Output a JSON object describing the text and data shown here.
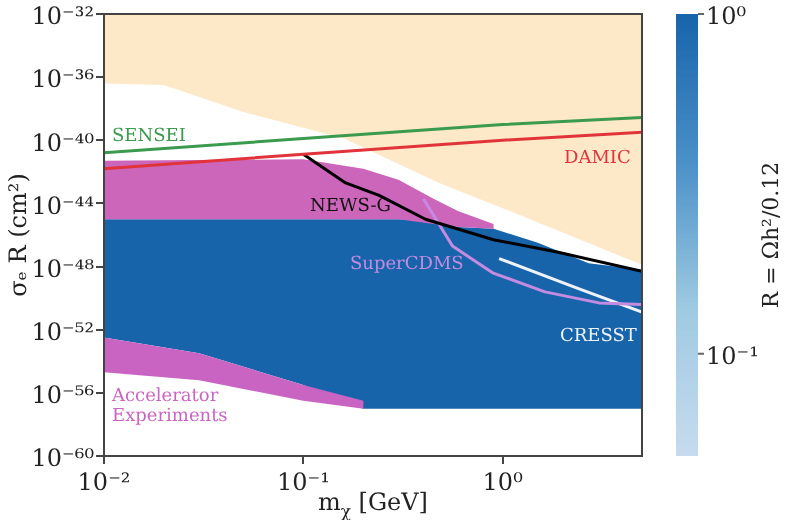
{
  "chart_data": {
    "type": "area",
    "xlabel": "m$_{χ}$ [GeV]",
    "ylabel": "σₑ R (cm²)",
    "clabel": "R = Ωh²/0.12",
    "log": "xy",
    "grid": false,
    "xlim": [
      0.01,
      5
    ],
    "ylim": [
      1e-60,
      1e-32
    ],
    "xticks": [
      {
        "value": 0.01,
        "label": "10⁻²"
      },
      {
        "value": 0.1,
        "label": "10⁻¹"
      },
      {
        "value": 1,
        "label": "10⁰"
      }
    ],
    "yticks": [
      {
        "value": 1e-60,
        "label": "10⁻⁶⁰"
      },
      {
        "value": 1e-56,
        "label": "10⁻⁵⁶"
      },
      {
        "value": 1e-52,
        "label": "10⁻⁵²"
      },
      {
        "value": 1e-48,
        "label": "10⁻⁴⁸"
      },
      {
        "value": 1e-44,
        "label": "10⁻⁴⁴"
      },
      {
        "value": 1e-40,
        "label": "10⁻⁴⁰"
      },
      {
        "value": 1e-36,
        "label": "10⁻³⁶"
      },
      {
        "value": 1e-32,
        "label": "10⁻³²"
      }
    ],
    "clim": [
      0.05,
      1
    ],
    "cticks": [
      {
        "value": 0.1,
        "label": "10⁻¹"
      },
      {
        "value": 1,
        "label": "10⁰"
      }
    ],
    "series": [
      {
        "type": "area",
        "color": "#fde8c8",
        "x": [
          0.01,
          5,
          5,
          1,
          0.48,
          0.3,
          0.16,
          0.05,
          0.02,
          0.01
        ],
        "values": [
          1e-32,
          1e-32,
          1.3e-48,
          5e-45,
          2e-43,
          3.2e-42,
          1.3e-40,
          6.3e-39,
          3.2e-37,
          4e-37
        ]
      },
      {
        "type": "area",
        "color": "#1764ab",
        "x": [
          0.01,
          0.4,
          0.6,
          0.9,
          1.5,
          2.7,
          5,
          5,
          0.2,
          0.1,
          0.03,
          0.01
        ],
        "values": [
          1e-45,
          1e-45,
          3.2e-46,
          2.5e-46,
          3.2e-47,
          1.6e-48,
          6.3e-49,
          1e-57,
          1e-57,
          3.2e-56,
          3.2e-54,
          3.2e-53
        ]
      },
      {
        "type": "area",
        "color": "#cc66bb",
        "x": [
          0.01,
          0.1,
          0.2,
          0.3,
          0.45,
          0.6,
          0.9,
          0.9,
          0.6,
          0.45,
          0.3,
          0.01
        ],
        "values": [
          5e-42,
          6.3e-42,
          1.6e-42,
          3.2e-43,
          2e-44,
          3.2e-45,
          5e-46,
          2.5e-46,
          3.2e-46,
          5e-46,
          1e-45,
          1e-45
        ]
      },
      {
        "type": "area",
        "name": "Accelerator Experiments",
        "color": "#c964c2",
        "x": [
          0.01,
          0.03,
          0.1,
          0.2,
          0.2,
          0.1,
          0.03,
          0.01
        ],
        "values": [
          3.2e-53,
          3.2e-54,
          3.2e-56,
          3.2e-57,
          1e-57,
          3.2e-57,
          6.3e-56,
          2e-55
        ]
      },
      {
        "type": "line",
        "name": "SENSEI",
        "color": "#3a9a4e",
        "x": [
          0.01,
          0.1,
          1,
          5
        ],
        "values": [
          1.6e-41,
          1.3e-40,
          1e-39,
          2.8e-39
        ]
      },
      {
        "type": "line",
        "name": "DAMIC",
        "color": "#e0343a",
        "x": [
          0.01,
          0.1,
          1,
          5
        ],
        "values": [
          1.6e-42,
          1.3e-41,
          1e-40,
          3.2e-40
        ]
      },
      {
        "type": "line",
        "name": "NEWS-G",
        "color": "#000000",
        "x": [
          0.1,
          0.163,
          0.24,
          0.41,
          0.9,
          1.9,
          5
        ],
        "values": [
          1.3e-41,
          2e-43,
          3.2e-44,
          1e-45,
          5e-47,
          8e-48,
          5e-49
        ]
      },
      {
        "type": "line",
        "name": "SuperCDMS",
        "color": "#c58be0",
        "x": [
          0.4,
          0.56,
          0.89,
          1.63,
          3.04,
          5
        ],
        "values": [
          2e-44,
          2e-47,
          4e-49,
          2.5e-50,
          5e-51,
          4e-51
        ]
      },
      {
        "type": "line",
        "name": "CRESST",
        "color": "#eef2fa",
        "x": [
          0.96,
          2.4,
          5
        ],
        "values": [
          3.2e-48,
          4e-50,
          1.3e-51
        ]
      }
    ]
  }
}
